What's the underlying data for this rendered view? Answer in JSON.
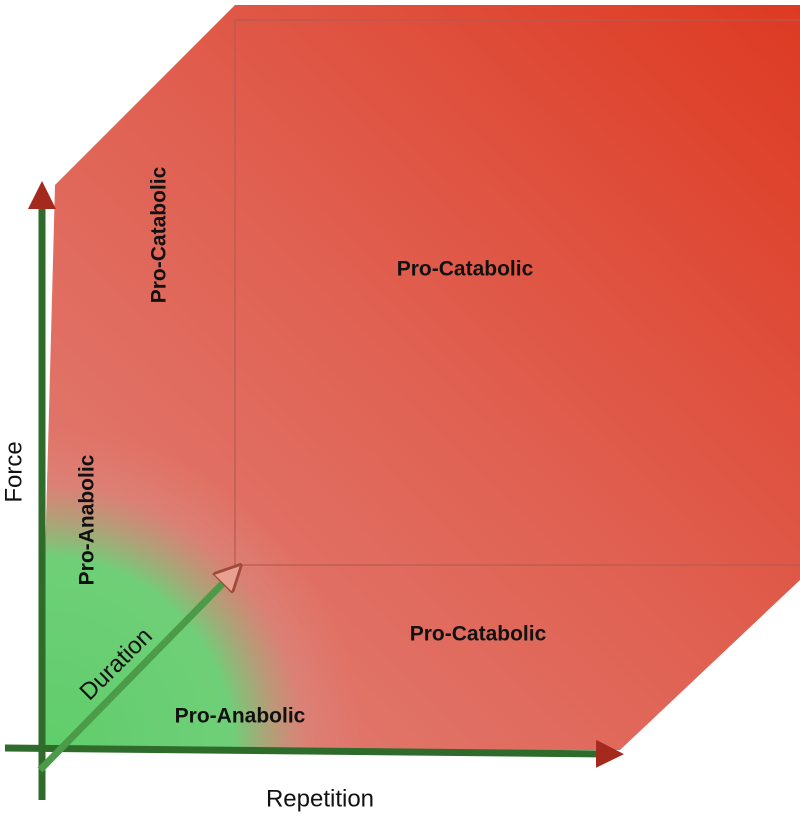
{
  "axes": {
    "force": "Force",
    "repetition": "Repetition",
    "duration": "Duration"
  },
  "regions": [
    {
      "label": "Pro-Catabolic"
    },
    {
      "label": "Pro-Catabolic"
    },
    {
      "label": "Pro-Catabolic"
    },
    {
      "label": "Pro-Anabolic"
    },
    {
      "label": "Pro-Anabolic"
    }
  ]
}
